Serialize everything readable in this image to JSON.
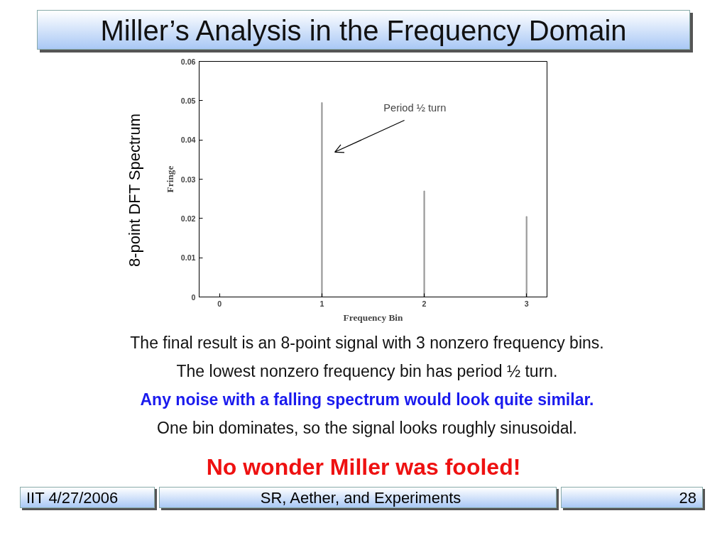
{
  "chart_data": {
    "type": "bar",
    "title": "Miller’s Analysis in the Frequency Domain",
    "xlabel": "Frequency Bin",
    "ylabel": "Fringe",
    "x": [
      0,
      1,
      2,
      3
    ],
    "values": [
      0,
      0.0495,
      0.027,
      0.0205
    ],
    "color": "#999999",
    "xlim": [
      -0.2,
      3.2
    ],
    "xticks": [
      0,
      1,
      2,
      3
    ],
    "ylim": [
      0,
      0.06
    ],
    "yticks": [
      0,
      0.01,
      0.02,
      0.03,
      0.04,
      0.05,
      0.06
    ],
    "grid": false,
    "annotations": [
      "Period ½ turn",
      "8-point DFT Spectrum",
      "The final result is an 8-point signal with 3 nonzero frequency bins.",
      "The lowest nonzero frequency bin has period ½ turn.",
      "Any noise with a falling spectrum would look quite similar.",
      "One bin dominates, so the signal looks roughly sinusoidal.",
      "No wonder Miller was fooled!",
      "IIT 4/27/2006",
      "SR, Aether, and Experiments",
      "28"
    ]
  }
}
